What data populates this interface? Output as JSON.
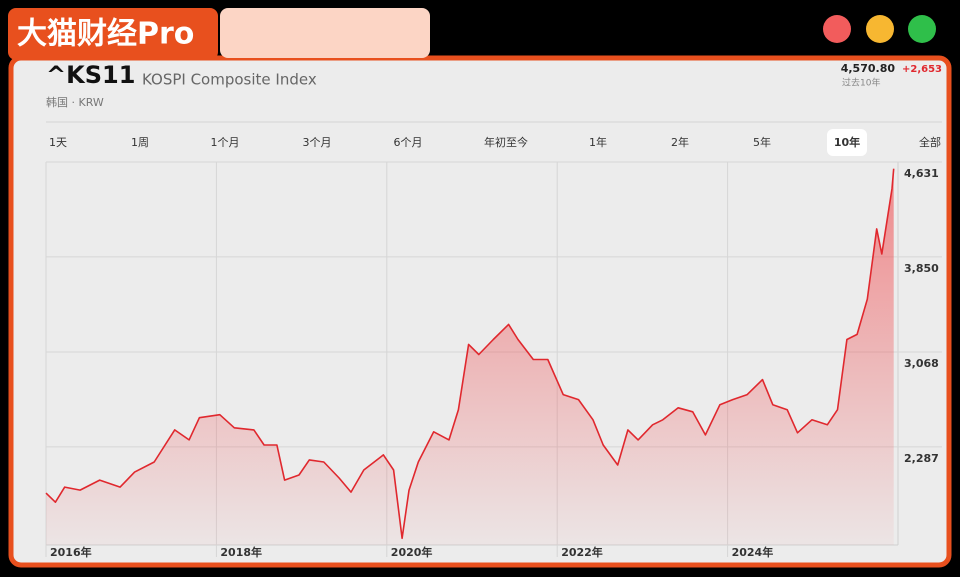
{
  "badge": "大猫财经Pro",
  "header": {
    "symbol": "^KS11",
    "name": "KOSPI Composite Index",
    "market": "韩国 · KRW",
    "price": "4,570.80",
    "change": "+2,653",
    "period": "过去10年"
  },
  "tabs": [
    "1天",
    "1周",
    "1个月",
    "3个月",
    "6个月",
    "年初至今",
    "1年",
    "2年",
    "5年",
    "10年",
    "全部"
  ],
  "selected_tab": 9,
  "chart_data": {
    "type": "area",
    "color": "#e0282e",
    "x": [
      2016.0,
      2016.11,
      2016.22,
      2016.4,
      2016.63,
      2016.87,
      2017.04,
      2017.27,
      2017.51,
      2017.68,
      2017.8,
      2018.04,
      2018.21,
      2018.44,
      2018.56,
      2018.71,
      2018.8,
      2018.97,
      2019.09,
      2019.26,
      2019.44,
      2019.58,
      2019.73,
      2019.96,
      2020.08,
      2020.18,
      2020.26,
      2020.37,
      2020.55,
      2020.73,
      2020.84,
      2020.96,
      2021.08,
      2021.25,
      2021.43,
      2021.54,
      2021.72,
      2021.89,
      2022.07,
      2022.25,
      2022.42,
      2022.54,
      2022.71,
      2022.83,
      2022.95,
      2023.12,
      2023.24,
      2023.42,
      2023.59,
      2023.74,
      2023.91,
      2024.06,
      2024.23,
      2024.41,
      2024.53,
      2024.7,
      2024.82,
      2024.99,
      2025.17,
      2025.29,
      2025.4,
      2025.52,
      2025.64,
      2025.75,
      2025.81,
      2025.93,
      2025.95
    ],
    "values": [
      1907,
      1832,
      1956,
      1932,
      2014,
      1956,
      2080,
      2163,
      2427,
      2345,
      2527,
      2552,
      2444,
      2427,
      2303,
      2303,
      2014,
      2056,
      2180,
      2163,
      2031,
      1915,
      2097,
      2221,
      2097,
      1535,
      1931,
      2163,
      2411,
      2345,
      2593,
      3130,
      3047,
      3171,
      3295,
      3171,
      3006,
      3006,
      2717,
      2676,
      2510,
      2303,
      2138,
      2427,
      2345,
      2469,
      2510,
      2609,
      2576,
      2386,
      2634,
      2676,
      2717,
      2841,
      2634,
      2593,
      2403,
      2510,
      2469,
      2593,
      3171,
      3213,
      3502,
      4081,
      3874,
      4411,
      4576
    ],
    "xlim": [
      2016,
      2026
    ],
    "xticks": [
      {
        "value": 2016,
        "label": "2016年"
      },
      {
        "value": 2018,
        "label": "2018年"
      },
      {
        "value": 2020,
        "label": "2020年"
      },
      {
        "value": 2022,
        "label": "2022年"
      },
      {
        "value": 2024,
        "label": "2024年"
      }
    ],
    "ylim": [
      1480,
      4631
    ],
    "yticks": [
      {
        "value": 2287,
        "label": "2,287"
      },
      {
        "value": 3068,
        "label": "3,068"
      },
      {
        "value": 3850,
        "label": "3,850"
      },
      {
        "value": 4631,
        "label": "4,631"
      }
    ],
    "grid": true
  }
}
